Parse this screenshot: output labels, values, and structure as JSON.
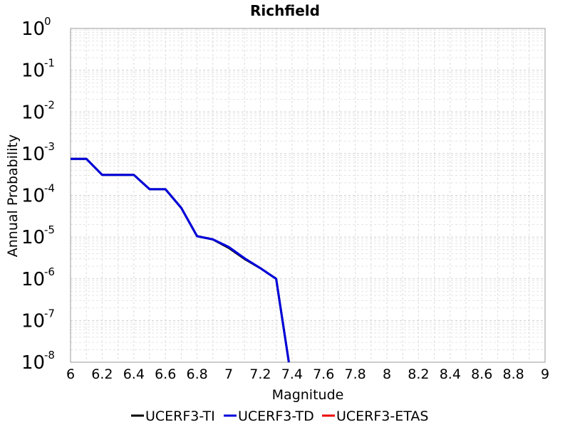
{
  "chart_data": {
    "type": "line",
    "title": "Richfield",
    "xlabel": "Magnitude",
    "ylabel": "Annual Probability",
    "xlim": [
      6,
      9
    ],
    "ylim": [
      1e-08,
      1
    ],
    "yscale": "log",
    "grid": true,
    "legend_position": "bottom",
    "x_ticks": [
      "6",
      "6.2",
      "6.4",
      "6.6",
      "6.8",
      "7",
      "7.2",
      "7.4",
      "7.6",
      "7.8",
      "8",
      "8.2",
      "8.4",
      "8.6",
      "8.8",
      "9"
    ],
    "y_ticks": [
      {
        "base": "10",
        "exp": "0"
      },
      {
        "base": "10",
        "exp": "-1"
      },
      {
        "base": "10",
        "exp": "-2"
      },
      {
        "base": "10",
        "exp": "-3"
      },
      {
        "base": "10",
        "exp": "-4"
      },
      {
        "base": "10",
        "exp": "-5"
      },
      {
        "base": "10",
        "exp": "-6"
      },
      {
        "base": "10",
        "exp": "-7"
      },
      {
        "base": "10",
        "exp": "-8"
      }
    ],
    "series": [
      {
        "name": "UCERF3-TI",
        "color": "#000000",
        "x": [
          6.0,
          6.1,
          6.2,
          6.3,
          6.4,
          6.5,
          6.6,
          6.7,
          6.8,
          6.9,
          7.0,
          7.1,
          7.2,
          7.3,
          7.38
        ],
        "y": [
          0.00075,
          0.00075,
          0.00031,
          0.00031,
          0.00031,
          0.00014,
          0.00014,
          5e-05,
          1.05e-05,
          8.8e-06,
          5.5e-06,
          3e-06,
          1.8e-06,
          1e-06,
          1e-08
        ]
      },
      {
        "name": "UCERF3-TD",
        "color": "#0000dd",
        "x": [
          6.0,
          6.1,
          6.2,
          6.3,
          6.4,
          6.5,
          6.6,
          6.7,
          6.8,
          6.9,
          7.0,
          7.1,
          7.2,
          7.3,
          7.38
        ],
        "y": [
          0.00075,
          0.00075,
          0.00031,
          0.00031,
          0.00031,
          0.00014,
          0.00014,
          5e-05,
          1.05e-05,
          8.8e-06,
          5.8e-06,
          3.1e-06,
          1.8e-06,
          1e-06,
          1e-08
        ]
      },
      {
        "name": "UCERF3-ETAS",
        "color": "#ee0000",
        "x": [],
        "y": []
      }
    ]
  }
}
